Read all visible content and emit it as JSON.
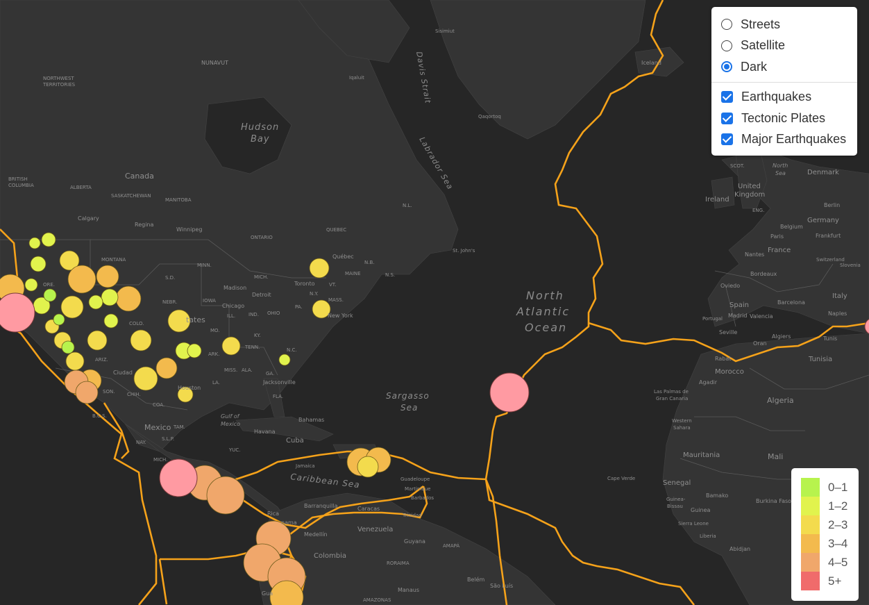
{
  "layer_control": {
    "base_layers": [
      {
        "label": "Streets",
        "checked": false
      },
      {
        "label": "Satellite",
        "checked": false
      },
      {
        "label": "Dark",
        "checked": true
      }
    ],
    "overlays": [
      {
        "label": "Earthquakes",
        "checked": true
      },
      {
        "label": "Tectonic Plates",
        "checked": true
      },
      {
        "label": "Major Earthquakes",
        "checked": true
      }
    ]
  },
  "legend": {
    "items": [
      {
        "label": "0–1",
        "color": "#b7f34d"
      },
      {
        "label": "1–2",
        "color": "#e1f34d"
      },
      {
        "label": "2–3",
        "color": "#f3db4d"
      },
      {
        "label": "3–4",
        "color": "#f3ba4d"
      },
      {
        "label": "4–5",
        "color": "#f0a76b"
      },
      {
        "label": "5+",
        "color": "#f06b6b"
      }
    ]
  },
  "colors": {
    "water": "#262626",
    "land": "#343434",
    "plate_boundary": "#f5a21a",
    "major_quake": "#ff9aa2"
  },
  "map_labels": {
    "nunavut": "NUNAVUT",
    "nw_territories_1": "NORTHWEST",
    "nw_territories_2": "TERRITORIES",
    "british_columbia_1": "BRITISH",
    "british_columbia_2": "COLUMBIA",
    "alberta": "ALBERTA",
    "saskatchewan": "SASKATCHEWAN",
    "manitoba": "MANITOBA",
    "ontario": "ONTARIO",
    "quebec": "QUEBEC",
    "canada": "Canada",
    "calgary": "Calgary",
    "regina": "Regina",
    "winnipeg": "Winnipeg",
    "montana": "MONTANA",
    "minn": "MINN.",
    "mich": "MICH.",
    "sd": "S.D.",
    "nebr": "NEBR.",
    "iowa": "IOWA",
    "ill": "ILL.",
    "ind": "IND.",
    "ohio": "OHIO",
    "pa": "PA.",
    "ny": "N.Y.",
    "vt": "VT.",
    "mass": "MASS.",
    "maine": "MAINE",
    "nb": "N.B.",
    "ns": "N.S.",
    "nl": "N.L.",
    "colo": "COLO.",
    "mo": "MO.",
    "ky": "KY.",
    "tenn": "TENN.",
    "ark": "ARK.",
    "nc": "N.C.",
    "miss": "MISS.",
    "ala": "ALA.",
    "ga": "GA.",
    "la": "LA.",
    "fla": "FLA.",
    "ore": "ORE.",
    "ariz": "ARIZ.",
    "son": "SON.",
    "chih": "CHIH.",
    "coa": "COA.",
    "tam": "TAM.",
    "slp": "S.L.P.",
    "nay": "NAY.",
    "mich_mx": "MICH.",
    "bcs": "B.C.S.",
    "yuc": "YUC.",
    "madison": "Madison",
    "chicago": "Chicago",
    "detroit": "Detroit",
    "toronto": "Toronto",
    "quebec_city": "Québec",
    "new_york": "New York",
    "jacksonville": "Jacksonville",
    "houston": "Houston",
    "ciudad": "Ciudad",
    "states": "tates",
    "mexico": "Mexico",
    "havana": "Havana",
    "cuba": "Cuba",
    "bahamas": "Bahamas",
    "jamaica": "Jamaica",
    "guadeloupe": "Guadeloupe",
    "martinique": "Martinique",
    "barbados": "Barbados",
    "barranquilla": "Barranquilla",
    "caracas": "Caracas",
    "trinidad": "Trinidad",
    "medellin": "Medellín",
    "venezuela": "Venezuela",
    "colombia": "Colombia",
    "guyana": "Guyana",
    "roraima": "RORAIMA",
    "amapa": "AMAPÁ",
    "belem": "Belém",
    "sao_luis": "São Luís",
    "manaus": "Manaus",
    "amazonas": "AMAZONAS",
    "rica": "Rica",
    "panama": "nama",
    "gua": "Gua",
    "sisimiut": "Sisimiut",
    "iqaluit": "Iqaluit",
    "qaqortoq": "Qaqortoq",
    "iceland": "Iceland",
    "st_johns": "St. John's",
    "scot": "SCOT.",
    "eng": "ENG.",
    "denmark": "Denmark",
    "ireland": "Ireland",
    "united_kingdom_1": "United",
    "united_kingdom_2": "Kingdom",
    "berlin": "Berlin",
    "germany": "Germany",
    "frankfurt": "Frankfurt",
    "belgium": "Belgium",
    "paris": "Paris",
    "nantes": "Nantes",
    "france": "France",
    "switzerland": "Switzerland",
    "slovenia": "Slovenia",
    "bordeaux": "Bordeaux",
    "oviedo": "Oviedo",
    "spain": "Spain",
    "barcelona": "Barcelona",
    "italy": "Italy",
    "portugal": "Portugal",
    "madrid": "Madrid",
    "valencia": "Valencia",
    "naples": "Naples",
    "seville": "Seville",
    "oran": "Oran",
    "algiers": "Algiers",
    "tunis": "Tunis",
    "tunisia": "Tunisia",
    "rabat": "Rabat",
    "morocco": "Morocco",
    "agadir": "Agadir",
    "algeria": "Algeria",
    "las_palmas_1": "Las Palmas de",
    "las_palmas_2": "Gran Canaria",
    "western_sahara_1": "Western",
    "western_sahara_2": "Sahara",
    "mauritania": "Mauritania",
    "mali": "Mali",
    "cape_verde": "Cape Verde",
    "senegal": "Senegal",
    "bamako": "Bamako",
    "burkina_faso": "Burkina Faso",
    "guinea_bissau_1": "Guinea-",
    "guinea_bissau_2": "Bissau",
    "guinea": "Guinea",
    "sierra_leone": "Sierra Leone",
    "liberia": "Liberia",
    "abidjan": "Abidjan",
    "hudson_bay_1": "Hudson",
    "hudson_bay_2": "Bay",
    "davis_strait": "Davis Strait",
    "labrador_sea": "Labrador Sea",
    "north_atlantic_1": "North",
    "north_atlantic_2": "Atlantic",
    "north_atlantic_3": "Ocean",
    "sargasso_1": "Sargasso",
    "sargasso_2": "Sea",
    "gulf_mexico_1": "Gulf of",
    "gulf_mexico_2": "Mexico",
    "caribbean_sea": "Caribbean Sea",
    "north_sea_1": "North",
    "north_sea_2": "Sea"
  }
}
